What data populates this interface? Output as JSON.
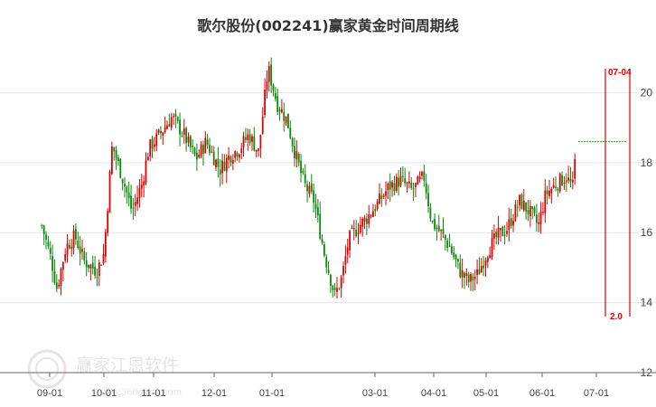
{
  "chart_data": {
    "type": "candlestick",
    "title": "歌尔股份(002241)赢家黄金时间周期线",
    "y_axis": {
      "ticks": [
        "20",
        "18",
        "16",
        "14",
        "12"
      ],
      "range": [
        12,
        21.2
      ]
    },
    "x_axis": {
      "ticks": [
        "09-01",
        "10-01",
        "11-01",
        "12-01",
        "01-01",
        "03-01",
        "04-01",
        "05-01",
        "06-01",
        "07-01"
      ]
    },
    "grid": true,
    "cycle_line": {
      "date_label": "07-04",
      "ratio_label": "2.0",
      "color": "#e00000"
    },
    "reference_line": {
      "value": 18.6,
      "color": "#3a9a3a"
    },
    "price_path": [
      [
        "08-27",
        16.2
      ],
      [
        "09-02",
        15.2
      ],
      [
        "09-05",
        14.4
      ],
      [
        "09-10",
        15.6
      ],
      [
        "09-15",
        15.9
      ],
      [
        "09-20",
        15.2
      ],
      [
        "09-27",
        14.9
      ],
      [
        "10-01",
        15.4
      ],
      [
        "10-06",
        18.5
      ],
      [
        "10-12",
        17.6
      ],
      [
        "10-18",
        16.6
      ],
      [
        "10-24",
        17.4
      ],
      [
        "10-28",
        18.4
      ],
      [
        "11-04",
        18.8
      ],
      [
        "11-10",
        19.3
      ],
      [
        "11-16",
        18.8
      ],
      [
        "11-22",
        18.1
      ],
      [
        "11-27",
        18.6
      ],
      [
        "12-04",
        17.8
      ],
      [
        "12-09",
        18.2
      ],
      [
        "12-14",
        18.4
      ],
      [
        "12-19",
        18.8
      ],
      [
        "12-24",
        18.3
      ],
      [
        "12-29",
        20.7
      ],
      [
        "01-04",
        19.7
      ],
      [
        "01-10",
        19.2
      ],
      [
        "01-14",
        18.4
      ],
      [
        "01-20",
        17.4
      ],
      [
        "01-26",
        16.9
      ],
      [
        "02-02",
        15.4
      ],
      [
        "02-08",
        14.2
      ],
      [
        "02-12",
        14.7
      ],
      [
        "02-16",
        15.8
      ],
      [
        "02-22",
        16.2
      ],
      [
        "02-26",
        16.4
      ],
      [
        "03-02",
        16.8
      ],
      [
        "03-08",
        17.3
      ],
      [
        "03-14",
        17.5
      ],
      [
        "03-20",
        17.2
      ],
      [
        "03-26",
        17.6
      ],
      [
        "03-30",
        16.3
      ],
      [
        "04-05",
        16.0
      ],
      [
        "04-10",
        15.6
      ],
      [
        "04-16",
        14.9
      ],
      [
        "04-21",
        14.6
      ],
      [
        "04-26",
        14.8
      ],
      [
        "05-02",
        15.5
      ],
      [
        "05-07",
        15.9
      ],
      [
        "05-12",
        16.1
      ],
      [
        "05-19",
        16.9
      ],
      [
        "05-24",
        16.6
      ],
      [
        "05-29",
        16.2
      ],
      [
        "06-03",
        17.1
      ],
      [
        "06-09",
        17.4
      ],
      [
        "06-14",
        17.6
      ],
      [
        "06-18",
        17.3
      ],
      [
        "06-20",
        18.6
      ]
    ]
  },
  "watermark": {
    "text": "赢家江恩软件",
    "url": "www.360gann.com"
  },
  "colors": {
    "up": "#e00000",
    "down": "#0a8a0a",
    "grid": "#e4e4e4",
    "axis": "#666666"
  }
}
